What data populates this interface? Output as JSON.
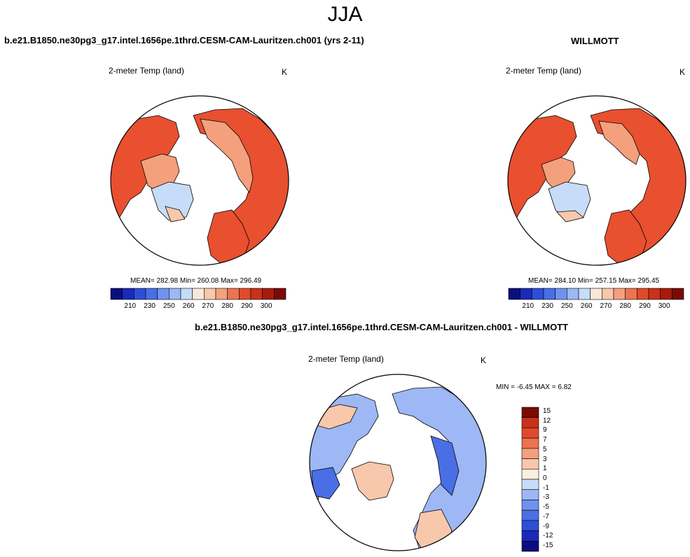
{
  "figure": {
    "season": "JJA",
    "variable_label": "2-meter Temp (land)",
    "units": "K"
  },
  "panels": {
    "model": {
      "title": "b.e21.B1850.ne30pg3_g17.intel.1656pe.1thrd.CESM-CAM-Lauritzen.ch001 (yrs 2-11)",
      "stats": "MEAN= 282.98  Min= 260.08  Max= 296.49"
    },
    "obs": {
      "title": "WILLMOTT",
      "stats": "MEAN= 284.10  Min= 257.15  Max= 295.45"
    },
    "diff": {
      "title": "b.e21.B1850.ne30pg3_g17.intel.1656pe.1thrd.CESM-CAM-Lauritzen.ch001 - WILLMOTT",
      "stats": "MIN =  -6.45 MAX =  6.82"
    }
  },
  "colorbars": {
    "abs": {
      "colors": [
        "#0a0f7d",
        "#1a2ab8",
        "#2f4ed6",
        "#4a6fe5",
        "#6e92ee",
        "#9db8f4",
        "#c7dcf8",
        "#f9e7da",
        "#f8c8ac",
        "#f4a07d",
        "#ec7352",
        "#e04a2b",
        "#c9311b",
        "#a51c0e",
        "#7a0a06"
      ],
      "tick_labels": [
        "210",
        "230",
        "250",
        "260",
        "270",
        "280",
        "290",
        "300"
      ]
    },
    "diff": {
      "colors": [
        "#0a0f7d",
        "#1a2ab8",
        "#2f4ed6",
        "#4a6fe5",
        "#6e92ee",
        "#9db8f4",
        "#c7dcf8",
        "#fbeee2",
        "#f8c8ac",
        "#f4a07d",
        "#ec7352",
        "#e04a2b",
        "#c9311b",
        "#7a0a06"
      ],
      "tick_labels": [
        "-15",
        "-12",
        "-9",
        "-7",
        "-5",
        "-3",
        "-1",
        "0",
        "1",
        "3",
        "5",
        "7",
        "9",
        "12",
        "15"
      ]
    }
  },
  "map_colors": {
    "warm_main": "#e8502f",
    "warm_light": "#f4a07d",
    "warm_pale": "#f8c8ac",
    "cold_pale": "#c7dcf8",
    "diff_blue": "#9db8f4",
    "diff_blue_dark": "#4a6fe5",
    "diff_warm": "#f8c8ac"
  }
}
